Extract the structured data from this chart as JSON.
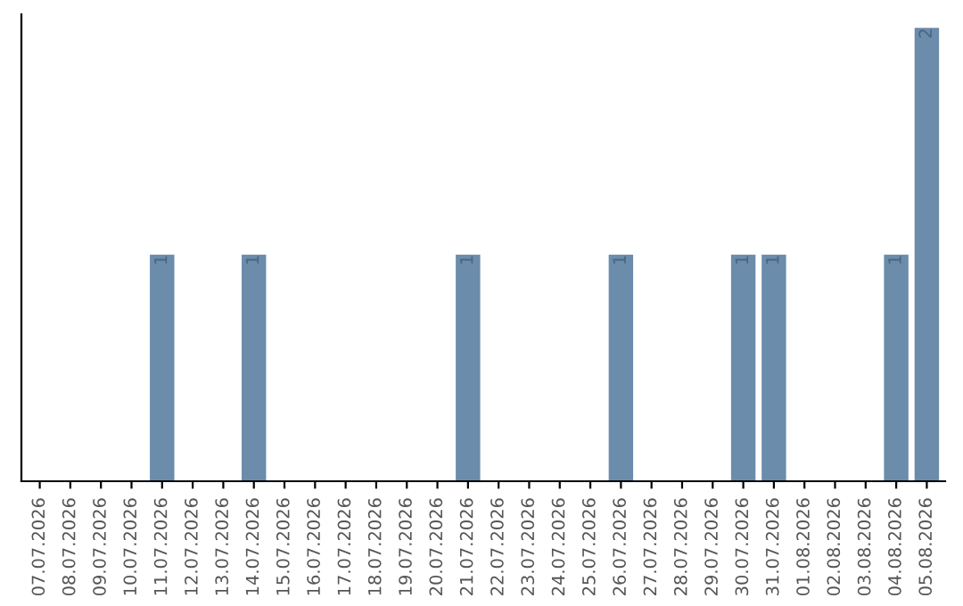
{
  "chart_data": {
    "type": "bar",
    "categories": [
      "07.07.2026",
      "08.07.2026",
      "09.07.2026",
      "10.07.2026",
      "11.07.2026",
      "12.07.2026",
      "13.07.2026",
      "14.07.2026",
      "15.07.2026",
      "16.07.2026",
      "17.07.2026",
      "18.07.2026",
      "19.07.2026",
      "20.07.2026",
      "21.07.2026",
      "22.07.2026",
      "23.07.2026",
      "24.07.2026",
      "25.07.2026",
      "26.07.2026",
      "27.07.2026",
      "28.07.2026",
      "29.07.2026",
      "30.07.2026",
      "31.07.2026",
      "01.08.2026",
      "02.08.2026",
      "03.08.2026",
      "04.08.2026",
      "05.08.2026"
    ],
    "values": [
      0,
      0,
      0,
      0,
      1,
      0,
      0,
      1,
      0,
      0,
      0,
      0,
      0,
      0,
      1,
      0,
      0,
      0,
      0,
      1,
      0,
      0,
      0,
      1,
      1,
      0,
      0,
      0,
      1,
      2
    ],
    "value_labels": [
      null,
      null,
      null,
      null,
      "1",
      null,
      null,
      "1",
      null,
      null,
      null,
      null,
      null,
      null,
      "1",
      null,
      null,
      null,
      null,
      "1",
      null,
      null,
      null,
      "1",
      "1",
      null,
      null,
      null,
      "1",
      "2"
    ],
    "color": "#6b8cab",
    "grid": false,
    "legend": false,
    "tick_labels": "x"
  }
}
